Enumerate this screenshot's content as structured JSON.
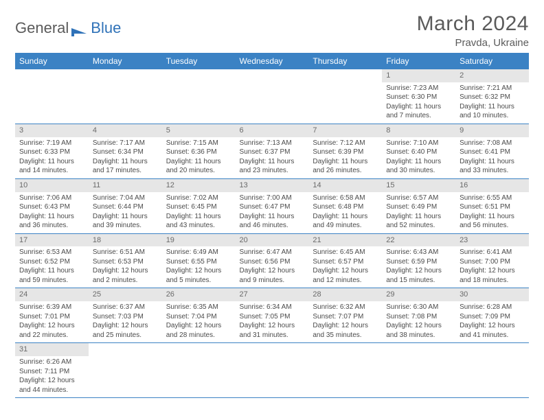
{
  "logo": {
    "text1": "General",
    "text2": "Blue"
  },
  "title": "March 2024",
  "location": "Pravda, Ukraine",
  "colors": {
    "header_bg": "#3b82c4",
    "header_text": "#ffffff",
    "daynum_bg": "#e6e6e6",
    "row_border": "#3b82c4",
    "body_text": "#4a4a4a",
    "title_text": "#5a5a5a"
  },
  "fonts": {
    "title_size": 30,
    "location_size": 15,
    "header_size": 12,
    "cell_size": 10
  },
  "weekdays": [
    "Sunday",
    "Monday",
    "Tuesday",
    "Wednesday",
    "Thursday",
    "Friday",
    "Saturday"
  ],
  "weeks": [
    [
      null,
      null,
      null,
      null,
      null,
      {
        "n": "1",
        "sr": "7:23 AM",
        "ss": "6:30 PM",
        "dl": "11 hours and 7 minutes."
      },
      {
        "n": "2",
        "sr": "7:21 AM",
        "ss": "6:32 PM",
        "dl": "11 hours and 10 minutes."
      }
    ],
    [
      {
        "n": "3",
        "sr": "7:19 AM",
        "ss": "6:33 PM",
        "dl": "11 hours and 14 minutes."
      },
      {
        "n": "4",
        "sr": "7:17 AM",
        "ss": "6:34 PM",
        "dl": "11 hours and 17 minutes."
      },
      {
        "n": "5",
        "sr": "7:15 AM",
        "ss": "6:36 PM",
        "dl": "11 hours and 20 minutes."
      },
      {
        "n": "6",
        "sr": "7:13 AM",
        "ss": "6:37 PM",
        "dl": "11 hours and 23 minutes."
      },
      {
        "n": "7",
        "sr": "7:12 AM",
        "ss": "6:39 PM",
        "dl": "11 hours and 26 minutes."
      },
      {
        "n": "8",
        "sr": "7:10 AM",
        "ss": "6:40 PM",
        "dl": "11 hours and 30 minutes."
      },
      {
        "n": "9",
        "sr": "7:08 AM",
        "ss": "6:41 PM",
        "dl": "11 hours and 33 minutes."
      }
    ],
    [
      {
        "n": "10",
        "sr": "7:06 AM",
        "ss": "6:43 PM",
        "dl": "11 hours and 36 minutes."
      },
      {
        "n": "11",
        "sr": "7:04 AM",
        "ss": "6:44 PM",
        "dl": "11 hours and 39 minutes."
      },
      {
        "n": "12",
        "sr": "7:02 AM",
        "ss": "6:45 PM",
        "dl": "11 hours and 43 minutes."
      },
      {
        "n": "13",
        "sr": "7:00 AM",
        "ss": "6:47 PM",
        "dl": "11 hours and 46 minutes."
      },
      {
        "n": "14",
        "sr": "6:58 AM",
        "ss": "6:48 PM",
        "dl": "11 hours and 49 minutes."
      },
      {
        "n": "15",
        "sr": "6:57 AM",
        "ss": "6:49 PM",
        "dl": "11 hours and 52 minutes."
      },
      {
        "n": "16",
        "sr": "6:55 AM",
        "ss": "6:51 PM",
        "dl": "11 hours and 56 minutes."
      }
    ],
    [
      {
        "n": "17",
        "sr": "6:53 AM",
        "ss": "6:52 PM",
        "dl": "11 hours and 59 minutes."
      },
      {
        "n": "18",
        "sr": "6:51 AM",
        "ss": "6:53 PM",
        "dl": "12 hours and 2 minutes."
      },
      {
        "n": "19",
        "sr": "6:49 AM",
        "ss": "6:55 PM",
        "dl": "12 hours and 5 minutes."
      },
      {
        "n": "20",
        "sr": "6:47 AM",
        "ss": "6:56 PM",
        "dl": "12 hours and 9 minutes."
      },
      {
        "n": "21",
        "sr": "6:45 AM",
        "ss": "6:57 PM",
        "dl": "12 hours and 12 minutes."
      },
      {
        "n": "22",
        "sr": "6:43 AM",
        "ss": "6:59 PM",
        "dl": "12 hours and 15 minutes."
      },
      {
        "n": "23",
        "sr": "6:41 AM",
        "ss": "7:00 PM",
        "dl": "12 hours and 18 minutes."
      }
    ],
    [
      {
        "n": "24",
        "sr": "6:39 AM",
        "ss": "7:01 PM",
        "dl": "12 hours and 22 minutes."
      },
      {
        "n": "25",
        "sr": "6:37 AM",
        "ss": "7:03 PM",
        "dl": "12 hours and 25 minutes."
      },
      {
        "n": "26",
        "sr": "6:35 AM",
        "ss": "7:04 PM",
        "dl": "12 hours and 28 minutes."
      },
      {
        "n": "27",
        "sr": "6:34 AM",
        "ss": "7:05 PM",
        "dl": "12 hours and 31 minutes."
      },
      {
        "n": "28",
        "sr": "6:32 AM",
        "ss": "7:07 PM",
        "dl": "12 hours and 35 minutes."
      },
      {
        "n": "29",
        "sr": "6:30 AM",
        "ss": "7:08 PM",
        "dl": "12 hours and 38 minutes."
      },
      {
        "n": "30",
        "sr": "6:28 AM",
        "ss": "7:09 PM",
        "dl": "12 hours and 41 minutes."
      }
    ],
    [
      {
        "n": "31",
        "sr": "6:26 AM",
        "ss": "7:11 PM",
        "dl": "12 hours and 44 minutes."
      },
      null,
      null,
      null,
      null,
      null,
      null
    ]
  ],
  "labels": {
    "sunrise": "Sunrise:",
    "sunset": "Sunset:",
    "daylight": "Daylight:"
  }
}
